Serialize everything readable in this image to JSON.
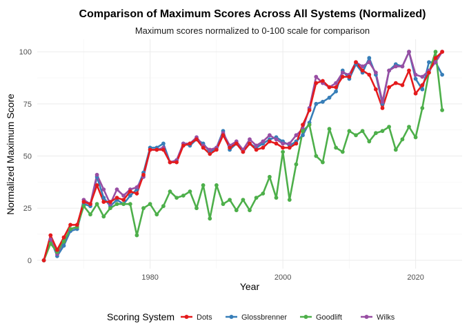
{
  "chart_data": {
    "type": "line",
    "title": "Comparison of Maximum Scores Across All Systems (Normalized)",
    "subtitle": "Maximum scores normalized to 0-100 scale for comparison",
    "xlabel": "Year",
    "ylabel": "Normalized Maximum Score",
    "xlim": [
      1963,
      2027
    ],
    "ylim": [
      -4,
      106
    ],
    "xticks": [
      1980,
      2000,
      2020
    ],
    "yticks": [
      0,
      25,
      50,
      75,
      100
    ],
    "grid": true,
    "legend": {
      "title": "Scoring System",
      "position": "bottom"
    },
    "series": [
      {
        "name": "Glossbrenner",
        "color": "#377eb8",
        "x": [
          1964,
          1965,
          1966,
          1967,
          1968,
          1969,
          1970,
          1971,
          1972,
          1973,
          1974,
          1975,
          1976,
          1977,
          1978,
          1979,
          1980,
          1981,
          1982,
          1983,
          1984,
          1985,
          1986,
          1987,
          1988,
          1989,
          1990,
          1991,
          1992,
          1993,
          1994,
          1995,
          1996,
          1997,
          1998,
          1999,
          2000,
          2001,
          2002,
          2003,
          2004,
          2005,
          2006,
          2007,
          2008,
          2009,
          2010,
          2011,
          2012,
          2013,
          2014,
          2015,
          2016,
          2017,
          2018,
          2019,
          2020,
          2021,
          2022,
          2023,
          2024
        ],
        "values": [
          0,
          10,
          2,
          7,
          14,
          15,
          27,
          26,
          40,
          30,
          26,
          29,
          27,
          31,
          34,
          42,
          54,
          54,
          56,
          47,
          48,
          56,
          55,
          58,
          56,
          52,
          54,
          62,
          53,
          56,
          52,
          56,
          54,
          56,
          58,
          59,
          57,
          55,
          57,
          60,
          66,
          75,
          76,
          78,
          81,
          91,
          87,
          94,
          90,
          97,
          89,
          75,
          91,
          94,
          93,
          100,
          87,
          82,
          95,
          95,
          89
        ]
      },
      {
        "name": "Wilks",
        "color": "#984ea3",
        "x": [
          1964,
          1965,
          1966,
          1967,
          1968,
          1969,
          1970,
          1971,
          1972,
          1973,
          1974,
          1975,
          1976,
          1977,
          1978,
          1979,
          1980,
          1981,
          1982,
          1983,
          1984,
          1985,
          1986,
          1987,
          1988,
          1989,
          1990,
          1991,
          1992,
          1993,
          1994,
          1995,
          1996,
          1997,
          1998,
          1999,
          2000,
          2001,
          2002,
          2003,
          2004,
          2005,
          2006,
          2007,
          2008,
          2009,
          2010,
          2011,
          2012,
          2013,
          2014,
          2015,
          2016,
          2017,
          2018,
          2019,
          2020,
          2021,
          2022,
          2023,
          2024
        ],
        "values": [
          0,
          10,
          3,
          9,
          15,
          16,
          29,
          27,
          41,
          34,
          27,
          34,
          31,
          34,
          35,
          40,
          53,
          53,
          54,
          47,
          48,
          56,
          56,
          59,
          55,
          53,
          54,
          61,
          55,
          57,
          53,
          58,
          55,
          57,
          60,
          58,
          56,
          56,
          60,
          63,
          73,
          88,
          85,
          83,
          85,
          90,
          89,
          95,
          93,
          95,
          90,
          76,
          91,
          93,
          93,
          100,
          89,
          88,
          91,
          95,
          100
        ]
      },
      {
        "name": "Goodlift",
        "color": "#4daf4a",
        "x": [
          1964,
          1965,
          1966,
          1967,
          1968,
          1969,
          1970,
          1971,
          1972,
          1973,
          1974,
          1975,
          1976,
          1977,
          1978,
          1979,
          1980,
          1981,
          1982,
          1983,
          1984,
          1985,
          1986,
          1987,
          1988,
          1989,
          1990,
          1991,
          1992,
          1993,
          1994,
          1995,
          1996,
          1997,
          1998,
          1999,
          2000,
          2001,
          2002,
          2003,
          2004,
          2005,
          2006,
          2007,
          2008,
          2009,
          2010,
          2011,
          2012,
          2013,
          2014,
          2015,
          2016,
          2017,
          2018,
          2019,
          2020,
          2021,
          2022,
          2023,
          2024
        ],
        "values": [
          0,
          8,
          4,
          9,
          15,
          16,
          26,
          22,
          27,
          21,
          25,
          27,
          27,
          27,
          12,
          25,
          27,
          22,
          26,
          33,
          30,
          31,
          33,
          25,
          36,
          20,
          36,
          27,
          29,
          24,
          29,
          24,
          30,
          32,
          40,
          30,
          52,
          29,
          46,
          62,
          65,
          50,
          47,
          63,
          54,
          52,
          62,
          60,
          62,
          57,
          61,
          62,
          64,
          53,
          58,
          64,
          59,
          73,
          90,
          100,
          72
        ]
      },
      {
        "name": "Dots",
        "color": "#e41a1c",
        "x": [
          1964,
          1965,
          1966,
          1967,
          1968,
          1969,
          1970,
          1971,
          1972,
          1973,
          1974,
          1975,
          1976,
          1977,
          1978,
          1979,
          1980,
          1981,
          1982,
          1983,
          1984,
          1985,
          1986,
          1987,
          1988,
          1989,
          1990,
          1991,
          1992,
          1993,
          1994,
          1995,
          1996,
          1997,
          1998,
          1999,
          2000,
          2001,
          2002,
          2003,
          2004,
          2005,
          2006,
          2007,
          2008,
          2009,
          2010,
          2011,
          2012,
          2013,
          2014,
          2015,
          2016,
          2017,
          2018,
          2019,
          2020,
          2021,
          2022,
          2023,
          2024
        ],
        "values": [
          0,
          12,
          5,
          11,
          17,
          17,
          28,
          27,
          36,
          28,
          28,
          30,
          29,
          33,
          32,
          41,
          53,
          53,
          53,
          47,
          47,
          55,
          56,
          58,
          54,
          51,
          53,
          60,
          54,
          56,
          52,
          56,
          53,
          54,
          57,
          56,
          54,
          54,
          56,
          65,
          72,
          85,
          86,
          83,
          83,
          88,
          88,
          95,
          91,
          89,
          82,
          73,
          83,
          85,
          84,
          91,
          80,
          84,
          90,
          97,
          100
        ]
      }
    ],
    "legend_order": [
      "Dots",
      "Glossbrenner",
      "Goodlift",
      "Wilks"
    ]
  }
}
